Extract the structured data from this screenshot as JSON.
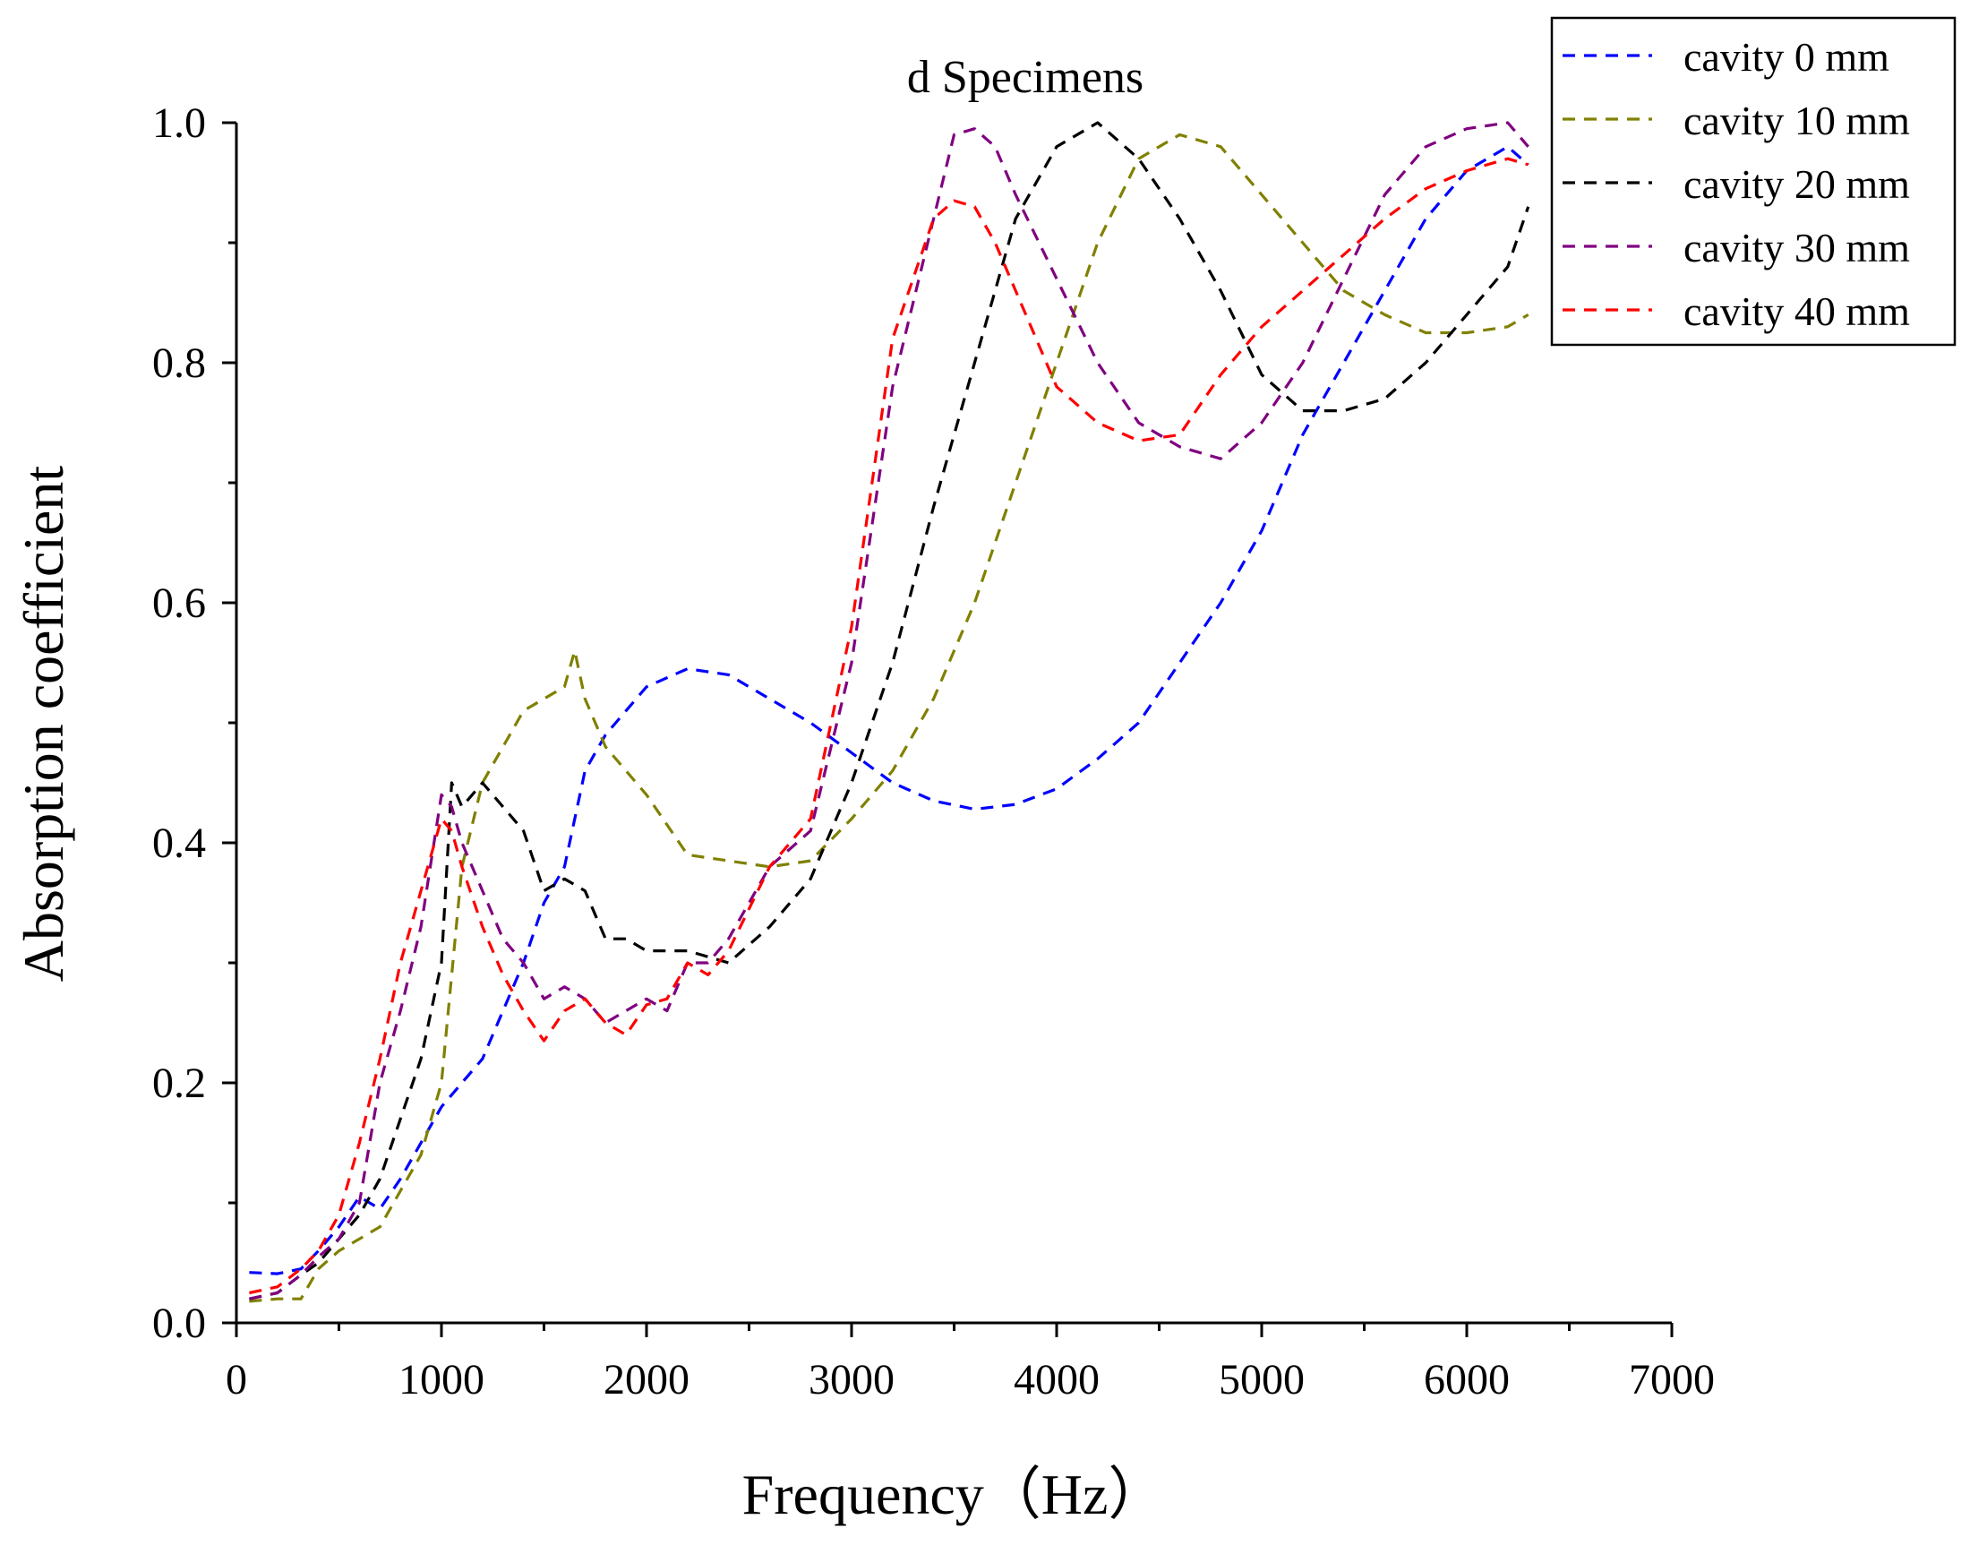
{
  "chart_data": {
    "type": "line",
    "title": "d Specimens",
    "xlabel": "Frequency（Hz）",
    "ylabel": "Absorption coefficient",
    "xlim": [
      0,
      7000
    ],
    "ylim": [
      0,
      1.0
    ],
    "xticks": [
      0,
      1000,
      2000,
      3000,
      4000,
      5000,
      6000,
      7000
    ],
    "yticks": [
      0.0,
      0.2,
      0.4,
      0.6,
      0.8,
      1.0
    ],
    "xtick_labels": [
      "0",
      "1000",
      "2000",
      "3000",
      "4000",
      "5000",
      "6000",
      "7000"
    ],
    "ytick_labels": [
      "0.0",
      "0.2",
      "0.4",
      "0.6",
      "0.8",
      "1.0"
    ],
    "grid": false,
    "legend_position": "top-right",
    "series": [
      {
        "name": "cavity 0 mm",
        "color": "#0000ff",
        "style": "dashed",
        "x": [
          63,
          200,
          315,
          400,
          500,
          600,
          700,
          800,
          900,
          1000,
          1100,
          1200,
          1300,
          1400,
          1500,
          1600,
          1700,
          1800,
          1900,
          2000,
          2200,
          2400,
          2600,
          2800,
          3000,
          3200,
          3400,
          3600,
          3800,
          4000,
          4200,
          4400,
          4600,
          4800,
          5000,
          5200,
          5400,
          5600,
          5800,
          6000,
          6200,
          6300
        ],
        "values": [
          0.042,
          0.041,
          0.045,
          0.06,
          0.08,
          0.105,
          0.095,
          0.12,
          0.15,
          0.18,
          0.2,
          0.22,
          0.26,
          0.3,
          0.35,
          0.38,
          0.46,
          0.49,
          0.51,
          0.53,
          0.545,
          0.54,
          0.52,
          0.5,
          0.475,
          0.45,
          0.435,
          0.428,
          0.432,
          0.445,
          0.47,
          0.5,
          0.55,
          0.6,
          0.66,
          0.74,
          0.8,
          0.86,
          0.92,
          0.96,
          0.98,
          0.965
        ]
      },
      {
        "name": "cavity 10 mm",
        "color": "#808000",
        "style": "dashed",
        "x": [
          63,
          200,
          315,
          400,
          500,
          600,
          700,
          800,
          900,
          1000,
          1100,
          1200,
          1300,
          1400,
          1500,
          1600,
          1650,
          1700,
          1800,
          1900,
          2000,
          2200,
          2400,
          2600,
          2800,
          3000,
          3200,
          3400,
          3600,
          3800,
          4000,
          4200,
          4400,
          4600,
          4800,
          5000,
          5200,
          5400,
          5600,
          5800,
          6000,
          6200,
          6300
        ],
        "values": [
          0.018,
          0.02,
          0.02,
          0.045,
          0.06,
          0.07,
          0.08,
          0.11,
          0.14,
          0.2,
          0.38,
          0.45,
          0.48,
          0.51,
          0.52,
          0.53,
          0.56,
          0.52,
          0.48,
          0.46,
          0.44,
          0.39,
          0.385,
          0.38,
          0.385,
          0.42,
          0.46,
          0.52,
          0.6,
          0.7,
          0.8,
          0.9,
          0.97,
          0.99,
          0.98,
          0.94,
          0.9,
          0.86,
          0.84,
          0.825,
          0.825,
          0.83,
          0.84
        ]
      },
      {
        "name": "cavity 20 mm",
        "color": "#000000",
        "style": "dashed",
        "x": [
          63,
          200,
          315,
          400,
          500,
          600,
          700,
          800,
          900,
          1000,
          1050,
          1100,
          1200,
          1300,
          1400,
          1500,
          1600,
          1700,
          1800,
          1900,
          2000,
          2200,
          2400,
          2600,
          2800,
          3000,
          3200,
          3400,
          3600,
          3800,
          4000,
          4200,
          4400,
          4600,
          4800,
          5000,
          5200,
          5400,
          5600,
          5800,
          6000,
          6200,
          6300
        ],
        "values": [
          0.02,
          0.025,
          0.04,
          0.05,
          0.07,
          0.09,
          0.12,
          0.17,
          0.22,
          0.3,
          0.45,
          0.43,
          0.45,
          0.43,
          0.41,
          0.36,
          0.37,
          0.36,
          0.32,
          0.32,
          0.31,
          0.31,
          0.3,
          0.33,
          0.37,
          0.45,
          0.55,
          0.68,
          0.8,
          0.92,
          0.98,
          1.0,
          0.97,
          0.92,
          0.86,
          0.79,
          0.76,
          0.76,
          0.77,
          0.8,
          0.84,
          0.88,
          0.93
        ]
      },
      {
        "name": "cavity 30 mm",
        "color": "#800080",
        "style": "dashed",
        "x": [
          63,
          200,
          315,
          400,
          500,
          600,
          700,
          800,
          900,
          1000,
          1050,
          1100,
          1200,
          1300,
          1400,
          1500,
          1600,
          1700,
          1800,
          1900,
          2000,
          2100,
          2200,
          2300,
          2400,
          2600,
          2800,
          3000,
          3200,
          3400,
          3500,
          3600,
          3700,
          3800,
          4000,
          4200,
          4400,
          4600,
          4800,
          5000,
          5200,
          5400,
          5600,
          5800,
          6000,
          6200,
          6300
        ],
        "values": [
          0.02,
          0.025,
          0.04,
          0.055,
          0.07,
          0.1,
          0.2,
          0.26,
          0.33,
          0.44,
          0.43,
          0.4,
          0.36,
          0.32,
          0.3,
          0.27,
          0.28,
          0.27,
          0.25,
          0.26,
          0.27,
          0.26,
          0.3,
          0.3,
          0.32,
          0.38,
          0.41,
          0.55,
          0.78,
          0.92,
          0.99,
          0.995,
          0.98,
          0.94,
          0.87,
          0.8,
          0.75,
          0.73,
          0.72,
          0.75,
          0.8,
          0.87,
          0.94,
          0.98,
          0.995,
          1.0,
          0.98
        ]
      },
      {
        "name": "cavity 40 mm",
        "color": "#ff0000",
        "style": "dashed",
        "x": [
          63,
          200,
          315,
          400,
          500,
          600,
          700,
          800,
          900,
          1000,
          1050,
          1100,
          1200,
          1300,
          1400,
          1500,
          1600,
          1700,
          1800,
          1900,
          2000,
          2100,
          2200,
          2300,
          2400,
          2600,
          2800,
          3000,
          3200,
          3400,
          3500,
          3600,
          3700,
          3800,
          4000,
          4200,
          4400,
          4600,
          4800,
          5000,
          5200,
          5400,
          5600,
          5800,
          6000,
          6200,
          6300
        ],
        "values": [
          0.025,
          0.03,
          0.045,
          0.06,
          0.09,
          0.15,
          0.22,
          0.3,
          0.36,
          0.42,
          0.41,
          0.38,
          0.33,
          0.29,
          0.26,
          0.235,
          0.26,
          0.27,
          0.25,
          0.24,
          0.265,
          0.27,
          0.3,
          0.29,
          0.31,
          0.38,
          0.42,
          0.58,
          0.82,
          0.92,
          0.935,
          0.93,
          0.9,
          0.86,
          0.78,
          0.75,
          0.735,
          0.74,
          0.79,
          0.83,
          0.86,
          0.89,
          0.92,
          0.945,
          0.96,
          0.97,
          0.965
        ]
      }
    ]
  }
}
